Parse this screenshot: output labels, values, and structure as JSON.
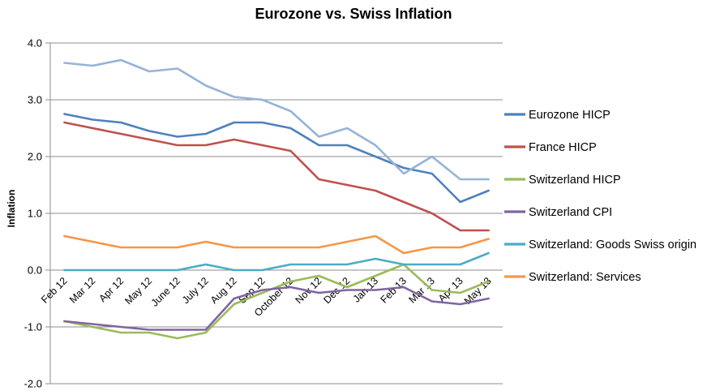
{
  "title": "Eurozone vs. Swiss Inflation",
  "chart_data": {
    "type": "line",
    "title": "Eurozone vs. Swiss Inflation",
    "xlabel": "",
    "ylabel": "Inflation",
    "ylim": [
      -2.0,
      4.0
    ],
    "ytick_labels": [
      "4.0",
      "3.0",
      "2.0",
      "1.0",
      "0.0",
      "-1.0",
      "-2.0"
    ],
    "grid": true,
    "legend_position": "right",
    "categories": [
      "Feb 12",
      "Mar 12",
      "Apr 12",
      "May 12",
      "June 12",
      "July 12",
      "Aug 12",
      "Sep 12",
      "October 12",
      "Nov 12",
      "Dec 12",
      "Jan 13",
      "Feb 13",
      "Mar 13",
      "Apr 13",
      "May 13"
    ],
    "series": [
      {
        "name": "Eurozone HICP",
        "in_legend": true,
        "color": "#4F81BD",
        "values": [
          2.75,
          2.65,
          2.6,
          2.45,
          2.35,
          2.4,
          2.6,
          2.6,
          2.5,
          2.2,
          2.2,
          2.0,
          1.8,
          1.7,
          1.2,
          1.4
        ]
      },
      {
        "name": "France HICP",
        "in_legend": true,
        "color": "#C0504D",
        "values": [
          2.6,
          2.5,
          2.4,
          2.3,
          2.2,
          2.2,
          2.3,
          2.2,
          2.1,
          1.6,
          1.5,
          1.4,
          1.2,
          1.0,
          0.7,
          0.7
        ]
      },
      {
        "name": "Switzerland HICP",
        "in_legend": true,
        "color": "#9BBB59",
        "values": [
          -0.9,
          -1.0,
          -1.1,
          -1.1,
          -1.2,
          -1.1,
          -0.6,
          -0.4,
          -0.2,
          -0.1,
          -0.3,
          -0.1,
          0.1,
          -0.35,
          -0.4,
          -0.2
        ]
      },
      {
        "name": "Switzerland CPI",
        "in_legend": true,
        "color": "#8064A2",
        "values": [
          -0.9,
          -0.95,
          -1.0,
          -1.05,
          -1.05,
          -1.05,
          -0.5,
          -0.35,
          -0.3,
          -0.4,
          -0.35,
          -0.35,
          -0.3,
          -0.55,
          -0.6,
          -0.5
        ]
      },
      {
        "name": "Switzerland: Goods Swiss origin",
        "in_legend": true,
        "color": "#4BACC6",
        "values": [
          0.0,
          0.0,
          0.0,
          0.0,
          0.0,
          0.1,
          0.0,
          0.0,
          0.1,
          0.1,
          0.1,
          0.2,
          0.1,
          0.1,
          0.1,
          0.3
        ]
      },
      {
        "name": "Switzerland: Services",
        "in_legend": true,
        "color": "#F79646",
        "values": [
          0.6,
          0.5,
          0.4,
          0.4,
          0.4,
          0.5,
          0.4,
          0.4,
          0.4,
          0.4,
          0.5,
          0.6,
          0.3,
          0.4,
          0.4,
          0.55
        ]
      },
      {
        "name": "",
        "in_legend": false,
        "color": "#95B3D7",
        "values": [
          3.65,
          3.6,
          3.7,
          3.5,
          3.55,
          3.25,
          3.05,
          3.0,
          2.8,
          2.35,
          2.5,
          2.2,
          1.7,
          2.0,
          1.6,
          1.6
        ]
      }
    ]
  },
  "style": {
    "gridline_color": "#8E8E8E",
    "axis_color": "#8E8E8E",
    "text_color": "#000000",
    "background": "#FFFFFF"
  }
}
